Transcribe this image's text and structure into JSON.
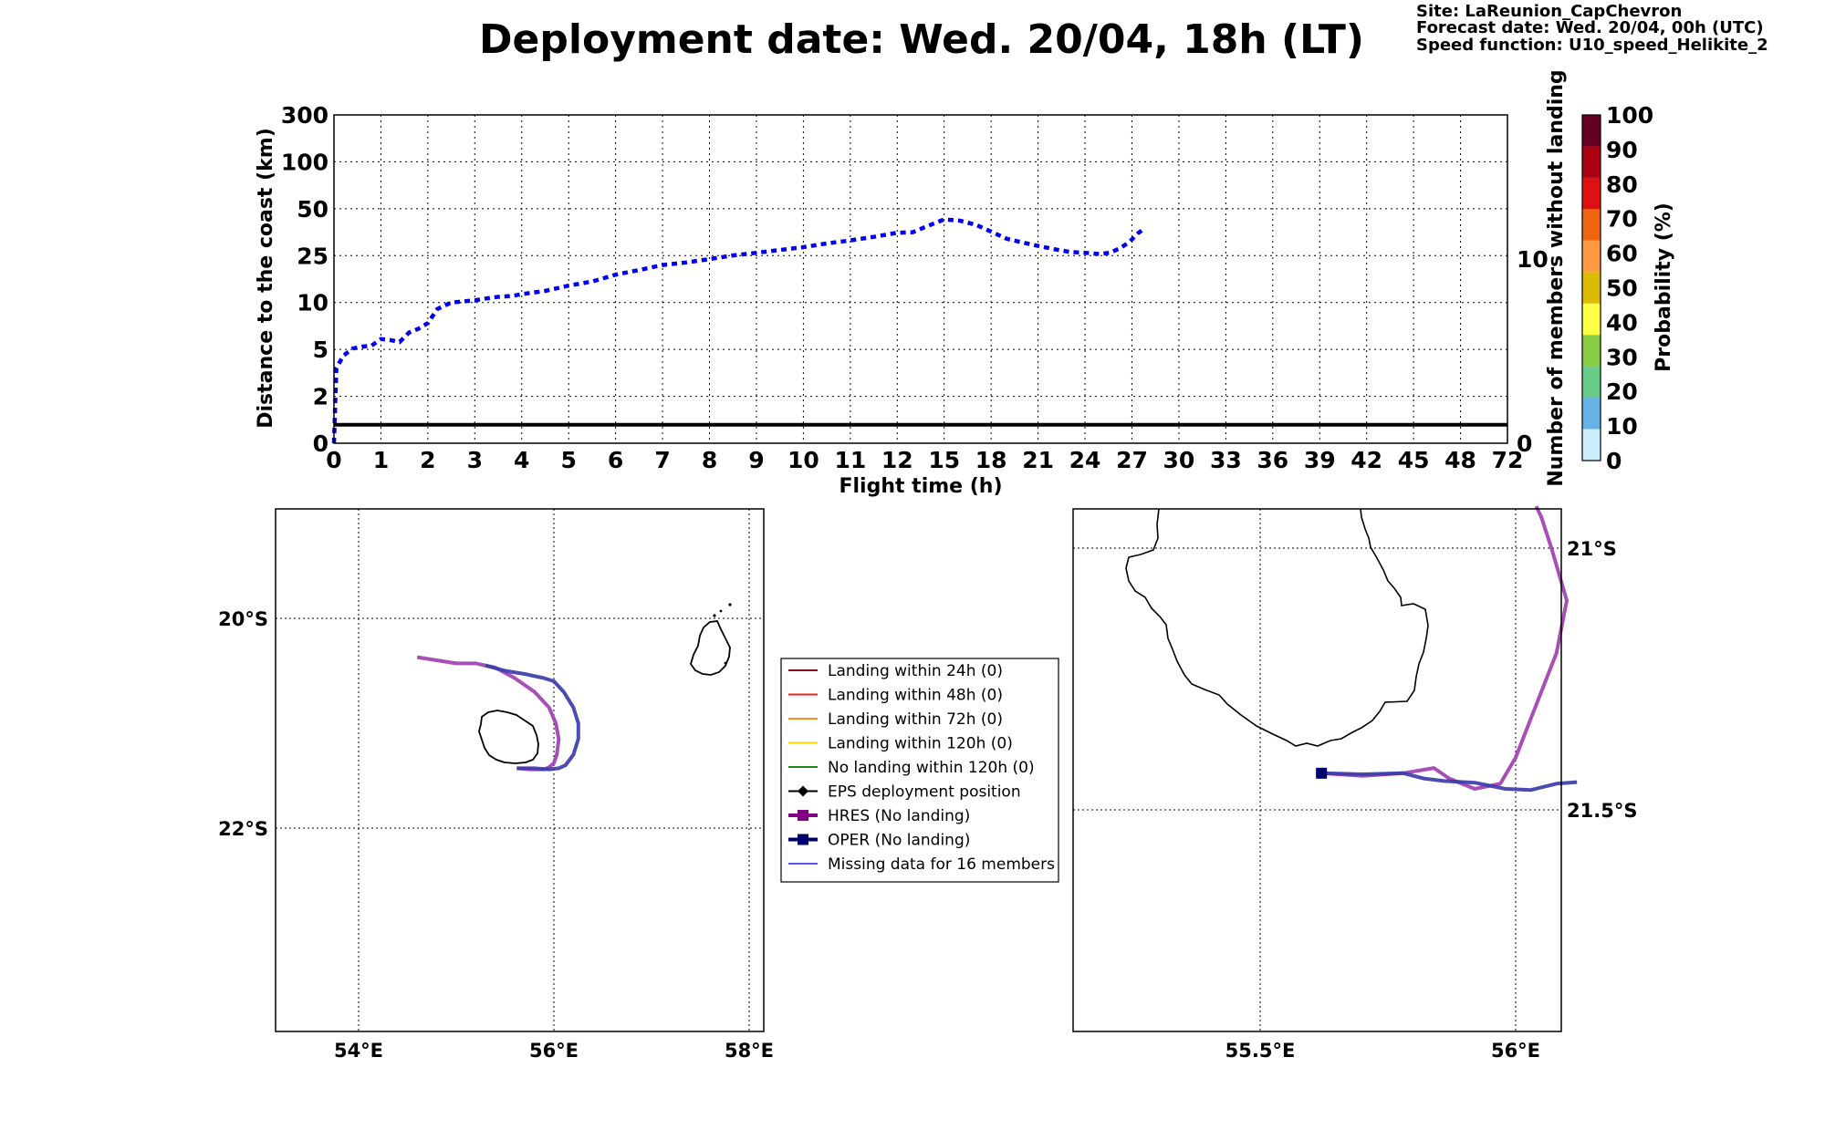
{
  "header": {
    "title": "Deployment date: Wed. 20/04, 18h (LT)",
    "site": "Site: LaReunion_CapChevron",
    "forecast": "Forecast date: Wed. 20/04, 00h (UTC)",
    "speed": "Speed function: U10_speed_Helikite_2"
  },
  "chart_data": [
    {
      "type": "line",
      "xlabel": "Flight time (h)",
      "ylabel": "Distance to the coast (km)",
      "ylabel_right": "Number of members without landing",
      "x_ticks": [
        "0",
        "1",
        "2",
        "3",
        "4",
        "5",
        "6",
        "7",
        "8",
        "9",
        "10",
        "11",
        "12",
        "15",
        "18",
        "21",
        "24",
        "27",
        "30",
        "33",
        "36",
        "39",
        "42",
        "45",
        "48",
        "72"
      ],
      "y_ticks": [
        "0",
        "2",
        "5",
        "10",
        "25",
        "50",
        "100",
        "300"
      ],
      "y_right_ticks": [
        "0",
        "10"
      ],
      "grid": true,
      "series": [
        {
          "color": "#0000ee",
          "style": "dotted",
          "x": [
            0,
            0.05,
            0.2,
            0.4,
            0.6,
            0.8,
            1,
            1.2,
            1.4,
            1.6,
            1.8,
            2,
            2.2,
            2.5,
            3,
            3.2,
            3.5,
            3.8,
            4,
            4.5,
            5,
            5.5,
            6,
            6.5,
            7,
            7.5,
            8,
            8.5,
            9,
            9.5,
            10,
            10.5,
            11,
            11.5,
            12,
            13,
            14,
            15,
            16,
            17,
            18,
            19,
            20,
            21,
            22,
            23,
            24,
            25,
            25.6,
            26.2,
            26.8,
            27.4,
            27.8
          ],
          "y": [
            0,
            3.8,
            4.6,
            5.1,
            5.3,
            5.4,
            6.1,
            6.0,
            5.8,
            6.8,
            7.2,
            7.8,
            9.3,
            10,
            10.7,
            11.2,
            11.8,
            12.1,
            12.7,
            13.7,
            15.4,
            16.7,
            18.9,
            20.4,
            22.0,
            22.8,
            23.9,
            25.1,
            26.5,
            28.0,
            29.5,
            31.5,
            33.1,
            35.0,
            37.2,
            37.5,
            41.0,
            44.3,
            43.6,
            41.5,
            37.8,
            34.0,
            32.0,
            30.2,
            28.5,
            27.0,
            26.5,
            25.8,
            26.6,
            28.8,
            32.0,
            37.0,
            39.5
          ]
        },
        {
          "color": "#000000",
          "style": "solid",
          "name_hint": "",
          "x": [
            0,
            72
          ],
          "y_right": [
            1,
            1
          ]
        }
      ]
    },
    {
      "type": "colorbar",
      "label": "Probability (%)",
      "ticks": [
        "0",
        "10",
        "20",
        "30",
        "40",
        "50",
        "60",
        "70",
        "80",
        "90",
        "100"
      ],
      "colors": [
        "#cceeff",
        "#66b3e6",
        "#66cc88",
        "#88cc44",
        "#ffff44",
        "#ddbb00",
        "#ff9944",
        "#ee6611",
        "#dd1111",
        "#aa0011",
        "#660022"
      ]
    },
    {
      "type": "map",
      "lon_ticks": [
        "54°E",
        "56°E",
        "58°E"
      ],
      "lat_ticks": [
        "20°S",
        "22°S"
      ],
      "series": [
        {
          "name": "HRES (No landing)",
          "color": "#a040b0",
          "lon": [
            54.6,
            54.8,
            55.0,
            55.2,
            55.4,
            55.6,
            55.8,
            55.95,
            56.02,
            56.05,
            56.03,
            56.0,
            55.95,
            55.9,
            55.75,
            55.62
          ],
          "lat": [
            -20.37,
            -20.4,
            -20.43,
            -20.43,
            -20.47,
            -20.57,
            -20.7,
            -20.85,
            -21.0,
            -21.15,
            -21.3,
            -21.38,
            -21.42,
            -21.44,
            -21.44,
            -21.43
          ]
        },
        {
          "name": "OPER (No landing)",
          "color": "#3c3caa",
          "lon": [
            55.3,
            55.5,
            55.7,
            55.9,
            56.0,
            56.1,
            56.2,
            56.25,
            56.25,
            56.2,
            56.12,
            56.05,
            55.95,
            55.8,
            55.62
          ],
          "lat": [
            -20.45,
            -20.5,
            -20.53,
            -20.57,
            -20.6,
            -20.7,
            -20.85,
            -21.0,
            -21.15,
            -21.3,
            -21.4,
            -21.43,
            -21.44,
            -21.43,
            -21.43
          ]
        }
      ]
    },
    {
      "type": "map",
      "lon_ticks": [
        "55.5°E",
        "56°E"
      ],
      "lat_ticks": [
        "21°S",
        "21.5°S"
      ],
      "series": [
        {
          "name": "HRES (No landing)",
          "color": "#a040b0",
          "lon": [
            55.62,
            55.7,
            55.78,
            55.84,
            55.87,
            55.92,
            55.97,
            56.0,
            56.04,
            56.08,
            56.1,
            56.07,
            56.05,
            56.04
          ],
          "lat": [
            -21.43,
            -21.435,
            -21.43,
            -21.42,
            -21.44,
            -21.46,
            -21.45,
            -21.4,
            -21.3,
            -21.2,
            -21.1,
            -21.0,
            -20.94,
            -20.92
          ]
        },
        {
          "name": "OPER (No landing)",
          "color": "#3c3caa",
          "lon": [
            55.62,
            55.7,
            55.78,
            55.82,
            55.86,
            55.92,
            55.98,
            56.03,
            56.08,
            56.12
          ],
          "lat": [
            -21.43,
            -21.432,
            -21.43,
            -21.44,
            -21.445,
            -21.448,
            -21.46,
            -21.462,
            -21.45,
            -21.447
          ]
        }
      ]
    }
  ],
  "legend": {
    "items": [
      {
        "label": "Landing within 24h (0)",
        "color": "#8b0a1e",
        "marker": "none",
        "width": 2
      },
      {
        "label": "Landing within 48h (0)",
        "color": "#ee2222",
        "marker": "none",
        "width": 2
      },
      {
        "label": "Landing within 72h (0)",
        "color": "#ff8c1a",
        "marker": "none",
        "width": 2
      },
      {
        "label": "Landing within 120h (0)",
        "color": "#ffd700",
        "marker": "none",
        "width": 2
      },
      {
        "label": "No landing within 120h (0)",
        "color": "#1a8c1a",
        "marker": "none",
        "width": 2
      },
      {
        "label": "EPS deployment position",
        "color": "#000000",
        "marker": "diamond",
        "width": 2
      },
      {
        "label": "HRES (No landing)",
        "color": "#800080",
        "marker": "square",
        "width": 4
      },
      {
        "label": "OPER (No landing)",
        "color": "#000070",
        "marker": "square",
        "width": 4
      },
      {
        "label": "Missing data for 16 members",
        "color": "#5555ee",
        "marker": "none",
        "width": 2
      }
    ]
  },
  "colors": {
    "track_blue": "#0000ee",
    "hres": "#a040b0",
    "oper": "#3c3caa",
    "coast": "#000000"
  }
}
